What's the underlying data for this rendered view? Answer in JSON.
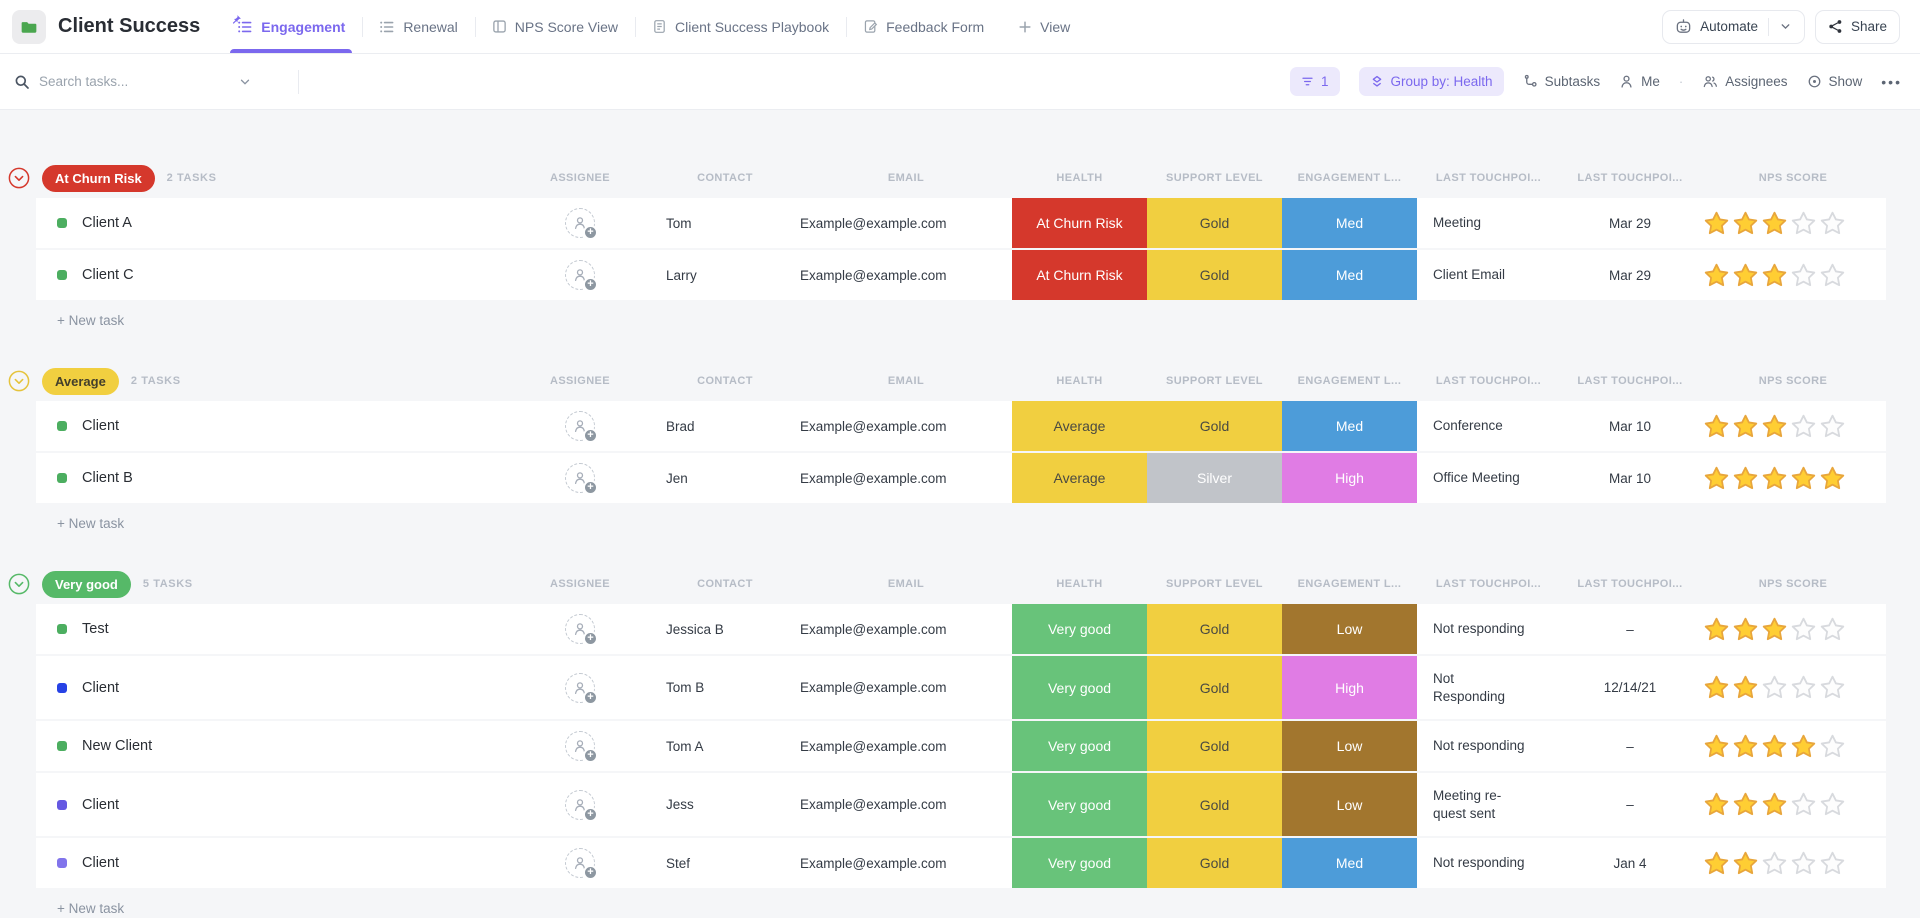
{
  "header": {
    "title": "Client Success",
    "tabs": [
      {
        "label": "Engagement",
        "icon": "list-icon",
        "active": true,
        "pinned": true
      },
      {
        "label": "Renewal",
        "icon": "list-icon",
        "active": false,
        "pinned": false
      },
      {
        "label": "NPS Score View",
        "icon": "board-icon",
        "active": false,
        "pinned": false
      },
      {
        "label": "Client Success Playbook",
        "icon": "doc-icon",
        "active": false,
        "pinned": false
      },
      {
        "label": "Feedback Form",
        "icon": "form-icon",
        "active": false,
        "pinned": false
      }
    ],
    "view_button_label": "View",
    "automate_label": "Automate",
    "share_label": "Share"
  },
  "toolbar": {
    "search_placeholder": "Search tasks...",
    "filter_count": "1",
    "group_by_label": "Group by: Health",
    "subtasks_label": "Subtasks",
    "me_label": "Me",
    "separator": "·",
    "assignees_label": "Assignees",
    "show_label": "Show",
    "more_label": "•••"
  },
  "table": {
    "columns": [
      "ASSIGNEE",
      "CONTACT",
      "EMAIL",
      "HEALTH",
      "SUPPORT LEVEL",
      "ENGAGEMENT L...",
      "LAST TOUCHPOI...",
      "LAST TOUCHPOI...",
      "NPS SCORE"
    ],
    "new_task_label": "+ New task",
    "groups": [
      {
        "label": "At Churn Risk",
        "badge_bg": "#d5382c",
        "badge_fg": "#ffffff",
        "accent": "#d5382c",
        "count_label": "2 TASKS",
        "rows": [
          {
            "name": "Client A",
            "dot": "#4cae60",
            "contact": "Tom",
            "email": "Example@example.com",
            "health": {
              "label": "At Churn Risk",
              "bg": "#d5382c",
              "fg": "#ffffff"
            },
            "support": {
              "label": "Gold",
              "bg": "#f1cf40",
              "fg": "#4a4a42"
            },
            "engagement": {
              "label": "Med",
              "bg": "#4d9cd9",
              "fg": "#ffffff"
            },
            "touchpoint": "Meeting",
            "date": "Mar 29",
            "nps": 3
          },
          {
            "name": "Client C",
            "dot": "#4cae60",
            "contact": "Larry",
            "email": "Example@example.com",
            "health": {
              "label": "At Churn Risk",
              "bg": "#d5382c",
              "fg": "#ffffff"
            },
            "support": {
              "label": "Gold",
              "bg": "#f1cf40",
              "fg": "#4a4a42"
            },
            "engagement": {
              "label": "Med",
              "bg": "#4d9cd9",
              "fg": "#ffffff"
            },
            "touchpoint": "Client Email",
            "date": "Mar 29",
            "nps": 3
          }
        ]
      },
      {
        "label": "Average",
        "badge_bg": "#f1cf40",
        "badge_fg": "#433f2b",
        "accent": "#e5c33c",
        "count_label": "2 TASKS",
        "rows": [
          {
            "name": "Client",
            "dot": "#4cae60",
            "contact": "Brad",
            "email": "Example@example.com",
            "health": {
              "label": "Average",
              "bg": "#f1cf40",
              "fg": "#4a4a42"
            },
            "support": {
              "label": "Gold",
              "bg": "#f1cf40",
              "fg": "#4a4a42"
            },
            "engagement": {
              "label": "Med",
              "bg": "#4d9cd9",
              "fg": "#ffffff"
            },
            "touchpoint": "Conference",
            "date": "Mar 10",
            "nps": 3
          },
          {
            "name": "Client B",
            "dot": "#4cae60",
            "contact": "Jen",
            "email": "Example@example.com",
            "health": {
              "label": "Average",
              "bg": "#f1cf40",
              "fg": "#4a4a42"
            },
            "support": {
              "label": "Silver",
              "bg": "#c1c4c9",
              "fg": "#ffffff"
            },
            "engagement": {
              "label": "High",
              "bg": "#e07ce4",
              "fg": "#ffffff"
            },
            "touchpoint": "Office Meeting",
            "date": "Mar 10",
            "nps": 5
          }
        ]
      },
      {
        "label": "Very good",
        "badge_bg": "#56b968",
        "badge_fg": "#ffffff",
        "accent": "#56b968",
        "count_label": "5 TASKS",
        "rows": [
          {
            "name": "Test",
            "dot": "#4cae60",
            "contact": "Jessica B",
            "email": "Example@example.com",
            "health": {
              "label": "Very good",
              "bg": "#68c37a",
              "fg": "#ffffff"
            },
            "support": {
              "label": "Gold",
              "bg": "#f1cf40",
              "fg": "#4a4a42"
            },
            "engagement": {
              "label": "Low",
              "bg": "#a2762e",
              "fg": "#ffffff"
            },
            "touchpoint": "Not responding",
            "date": "–",
            "nps": 3
          },
          {
            "name": "Client",
            "dot": "#2742e5",
            "contact": "Tom B",
            "email": "Example@example.com",
            "health": {
              "label": "Very good",
              "bg": "#68c37a",
              "fg": "#ffffff"
            },
            "support": {
              "label": "Gold",
              "bg": "#f1cf40",
              "fg": "#4a4a42"
            },
            "engagement": {
              "label": "High",
              "bg": "#e07ce4",
              "fg": "#ffffff"
            },
            "touchpoint": "Not\nResponding",
            "date": "12/14/21",
            "nps": 2
          },
          {
            "name": "New Client",
            "dot": "#4cae60",
            "contact": "Tom A",
            "email": "Example@example.com",
            "health": {
              "label": "Very good",
              "bg": "#68c37a",
              "fg": "#ffffff"
            },
            "support": {
              "label": "Gold",
              "bg": "#f1cf40",
              "fg": "#4a4a42"
            },
            "engagement": {
              "label": "Low",
              "bg": "#a2762e",
              "fg": "#ffffff"
            },
            "touchpoint": "Not responding",
            "date": "–",
            "nps": 4
          },
          {
            "name": "Client",
            "dot": "#6558e2",
            "contact": "Jess",
            "email": "Example@example.com",
            "health": {
              "label": "Very good",
              "bg": "#68c37a",
              "fg": "#ffffff"
            },
            "support": {
              "label": "Gold",
              "bg": "#f1cf40",
              "fg": "#4a4a42"
            },
            "engagement": {
              "label": "Low",
              "bg": "#a2762e",
              "fg": "#ffffff"
            },
            "touchpoint": "Meeting re-\nquest sent",
            "date": "–",
            "nps": 3
          },
          {
            "name": "Client",
            "dot": "#8174eb",
            "contact": "Stef",
            "email": "Example@example.com",
            "health": {
              "label": "Very good",
              "bg": "#68c37a",
              "fg": "#ffffff"
            },
            "support": {
              "label": "Gold",
              "bg": "#f1cf40",
              "fg": "#4a4a42"
            },
            "engagement": {
              "label": "Med",
              "bg": "#4d9cd9",
              "fg": "#ffffff"
            },
            "touchpoint": "Not responding",
            "date": "Jan 4",
            "nps": 2
          }
        ]
      }
    ]
  },
  "colors": {
    "accent": "#7b68ee",
    "folder_green": "#4aa64f",
    "star_filled": "#ffce33",
    "star_empty": "#fdfdfd"
  }
}
